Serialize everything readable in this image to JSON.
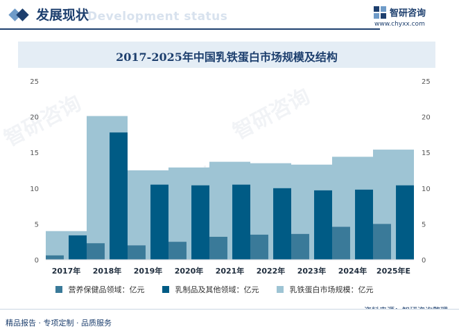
{
  "header": {
    "title": "发展现状",
    "ghost_text": "Development status",
    "brand_name": "智研咨询",
    "brand_url": "www.chyxx.com"
  },
  "legend": {
    "items": [
      {
        "label": "营养保健品领域：亿元",
        "color": "#3a7a99"
      },
      {
        "label": "乳制品及其他领域：亿元",
        "color": "#005b85"
      },
      {
        "label": "乳铁蛋白市场规模：亿元",
        "color": "#9ec4d4"
      }
    ]
  },
  "footer": {
    "left": "精品报告 · 专项定制 · 品质服务",
    "source": "资料来源：智研咨询整理"
  },
  "watermark_text": "智研咨询",
  "chart_data": {
    "type": "bar",
    "title": "2017-2025年中国乳铁蛋白市场规模及结构",
    "categories": [
      "2017年",
      "2018年",
      "2019年",
      "2020年",
      "2021年",
      "2022年",
      "2023年",
      "2024年",
      "2025年E"
    ],
    "series": [
      {
        "name": "营养保健品领域：亿元",
        "values": [
          0.6,
          2.3,
          2.0,
          2.5,
          3.2,
          3.5,
          3.6,
          4.6,
          5.0
        ],
        "color": "#3a7a99"
      },
      {
        "name": "乳制品及其他领域：亿元",
        "values": [
          3.4,
          17.8,
          10.5,
          10.4,
          10.5,
          10.0,
          9.7,
          9.8,
          10.4
        ],
        "color": "#005b85"
      },
      {
        "name": "乳铁蛋白市场规模：亿元",
        "values": [
          4.0,
          20.1,
          12.5,
          12.9,
          13.7,
          13.5,
          13.3,
          14.4,
          15.4
        ],
        "color": "#9ec4d4"
      }
    ],
    "ylim": [
      0,
      25
    ],
    "yticks": [
      0,
      5,
      10,
      15,
      20,
      25
    ],
    "grid": false,
    "legend_position": "bottom"
  }
}
